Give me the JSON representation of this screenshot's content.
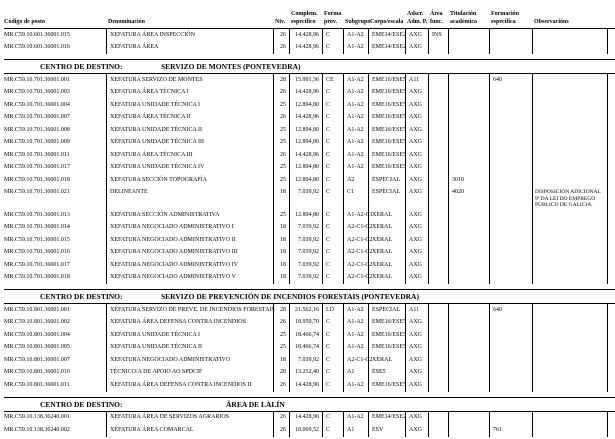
{
  "colors": {
    "text": "#000000",
    "line": "#000000",
    "background": "#ffffff"
  },
  "header": {
    "cols": [
      {
        "key": "codigo",
        "top": "",
        "bottom": "Código de posto"
      },
      {
        "key": "denominacion",
        "top": "",
        "bottom": "Denominación"
      },
      {
        "key": "niv",
        "top": "",
        "bottom": "Niv."
      },
      {
        "key": "complem",
        "top": "Complem.",
        "bottom": "específico"
      },
      {
        "key": "forma-prov",
        "top": "Forma",
        "bottom": "prov."
      },
      {
        "key": "subgrupo",
        "top": "",
        "bottom": "Subgrupo"
      },
      {
        "key": "corpo-escala",
        "top": "",
        "bottom": "Corpo/escala"
      },
      {
        "key": "adscr-adm-p",
        "top": "Adscr.",
        "bottom": "Adm. P."
      },
      {
        "key": "area-func",
        "top": "Área",
        "bottom": "func."
      },
      {
        "key": "titulacion",
        "top": "Titulación",
        "bottom": "académica"
      },
      {
        "key": "formacion",
        "top": "Formación",
        "bottom": "específica"
      },
      {
        "key": "observacions",
        "top": "",
        "bottom": "Observacións"
      }
    ]
  },
  "sections": [
    {
      "heading": null,
      "rows": [
        [
          "MR.C59.10.601.36001.015",
          "XEFATURA ÁREA INSPECCIÓN",
          "26",
          "14.428,96",
          "C",
          "A1-A2",
          "EME14/ESE2",
          "AXG",
          "INS",
          "",
          "",
          ""
        ],
        [
          "MR.C59.10.601.36001.016",
          "XEFATURA ÁREA",
          "26",
          "14.428,96",
          "C",
          "A1-A2",
          "EME14/ESE2",
          "AXG",
          "",
          "",
          "",
          ""
        ]
      ]
    },
    {
      "heading": {
        "label": "CENTRO DE DESTINO:",
        "name": "SERVIZO DE MONTES (PONTEVEDRA)"
      },
      "rows": [
        [
          "MR.C59.10.701.36001.001",
          "XEFATURA SERVIZO DE MONTES",
          "28",
          "15.991,36",
          "CE",
          "A1-A2",
          "EME16/ESE5",
          "A11",
          "",
          "",
          "640",
          ""
        ],
        [
          "MR.C59.10.701.36001.003",
          "XEFATURA ÁREA TÉCNICA I",
          "26",
          "14.428,96",
          "C",
          "A1-A2",
          "EME16/ESE5",
          "AXG",
          "",
          "",
          "",
          ""
        ],
        [
          "MR.C59.10.701.36001.004",
          "XEFATURA UNIDADE TÉCNICA I",
          "25",
          "12.894,80",
          "C",
          "A1-A2",
          "EME16/ESE5",
          "AXG",
          "",
          "",
          "",
          ""
        ],
        [
          "MR.C59.10.701.36001.007",
          "XEFATURA ÁREA TÉCNICA II",
          "26",
          "14.428,96",
          "C",
          "A1-A2",
          "EME16/ESE5",
          "AXG",
          "",
          "",
          "",
          ""
        ],
        [
          "MR.C59.10.701.36001.008",
          "XEFATURA UNIDADE TÉCNICA II",
          "25",
          "12.894,80",
          "C",
          "A1-A2",
          "EME16/ESE5",
          "AXG",
          "",
          "",
          "",
          ""
        ],
        [
          "MR.C59.10.701.36001.009",
          "XEFATURA UNIDADE TÉCNICA III",
          "25",
          "12.894,80",
          "C",
          "A1-A2",
          "EME16/ESE5",
          "AXG",
          "",
          "",
          "",
          ""
        ],
        [
          "MR.C59.10.701.36001.011",
          "XEFATURA ÁREA TÉCNICA III",
          "26",
          "14.428,96",
          "C",
          "A1-A2",
          "EME16/ESE5",
          "AXG",
          "",
          "",
          "",
          ""
        ],
        [
          "MR.C59.10.701.36001.017",
          "XEFATURA UNIDADE TÉCNICA IV",
          "25",
          "12.894,80",
          "C",
          "A1-A2",
          "EME16/ESE5",
          "AXG",
          "",
          "",
          "",
          ""
        ],
        [
          "MR.C59.10.701.36001.018",
          "XEFATURA SECCIÓN TOPOGRAFÍA",
          "25",
          "12.894,80",
          "C",
          "A2",
          "ESPECIAL",
          "AXG",
          "",
          "3010",
          "",
          ""
        ],
        [
          "MR.C59.10.701.36001.021",
          "DELINEANTE",
          "18",
          "7.039,92",
          "C",
          "C1",
          "ESPECIAL",
          "AXG",
          "",
          "4020",
          "",
          "DISPOSICIÓN ADICIONAL 9ª DA LEI DO EMPREGO PÚBLICO DE GALICIA."
        ],
        "spacer",
        [
          "MR.C59.10.701.36001.013",
          "XEFATURA SECCIÓN ADMINISTRATIVA",
          "25",
          "12.894,80",
          "C",
          "A1-A2-C1",
          "XERAL",
          "AXG",
          "",
          "",
          "",
          ""
        ],
        [
          "MR.C59.10.701.36001.014",
          "XEFATURA NEGOCIADO ADMINISTRATIVO I",
          "18",
          "7.039,92",
          "C",
          "A2-C1-C2",
          "XERAL",
          "AXG",
          "",
          "",
          "",
          ""
        ],
        [
          "MR.C59.10.701.36001.015",
          "XEFATURA NEGOCIADO ADMINISTRATIVO II",
          "18",
          "7.039,92",
          "C",
          "A2-C1-C2",
          "XERAL",
          "AXG",
          "",
          "",
          "",
          ""
        ],
        [
          "MR.C59.10.701.36001.016",
          "XEFATURA NEGOCIADO ADMINISTRATIVO III",
          "18",
          "7.039,92",
          "C",
          "A2-C1-C2",
          "XERAL",
          "AXG",
          "",
          "",
          "",
          ""
        ],
        [
          "MR.C59.10.701.36001.017",
          "XEFATURA NEGOCIADO ADMINISTRATIVO IV",
          "18",
          "7.039,92",
          "C",
          "A2-C1-C2",
          "XERAL",
          "AXG",
          "",
          "",
          "",
          ""
        ],
        [
          "MR.C59.10.701.36001.018",
          "XEFATURA NEGOCIADO ADMINISTRATIVO V",
          "18",
          "7.039,92",
          "C",
          "A2-C1-C2",
          "XERAL",
          "AXG",
          "",
          "",
          "",
          ""
        ]
      ]
    },
    {
      "heading": {
        "label": "CENTRO DE DESTINO:",
        "name": "SERVIZO DE PREVENCIÓN DE INCENDIOS FORESTAIS (PONTEVEDRA)"
      },
      "rows": [
        [
          "MR.C59.10.801.36001.001",
          "XEFATURA SERVIZO DE PREVE. DE INCENDIOS FORESTAIS",
          "28",
          "21.562,16",
          "LD",
          "A1-A2",
          "ESPECIAL",
          "A11",
          "",
          "",
          "640",
          ""
        ],
        [
          "MR.C59.10.801.36001.002",
          "XEFATURA ÁREA DEFENSA CONTRA INCENDIOS",
          "26",
          "18.959,70",
          "C",
          "A1-A2",
          "EME16/ESE5",
          "AXG",
          "",
          "",
          "",
          ""
        ],
        [
          "MR.C59.10.801.36001.004",
          "XEFATURA UNIDADE TÉCNICA I",
          "25",
          "18.466,74",
          "C",
          "A1-A2",
          "EME16/ESE5",
          "AXG",
          "",
          "",
          "",
          ""
        ],
        [
          "MR.C59.10.801.36001.005",
          "XEFATURA UNIDADE TÉCNICA II",
          "25",
          "18.466,74",
          "C",
          "A1-A2",
          "EME16/ESE5",
          "AXG",
          "",
          "",
          "",
          ""
        ],
        [
          "MR.C59.10.801.36001.007",
          "XEFATURA NEGOCIADO ADMINISTRATIVO",
          "18",
          "7.039,92",
          "C",
          "A2-C1-C2",
          "XERAL",
          "AXG",
          "",
          "",
          "",
          ""
        ],
        [
          "MR.C59.10.801.36001.010",
          "TÉCNICO/A DE APOIO AO SPDCIF",
          "20",
          "13.252,40",
          "C",
          "A1",
          "ESE5",
          "AXG",
          "",
          "",
          "",
          ""
        ],
        [
          "MR.C59.10.801.36001.011",
          "XEFATURA ÁREA DEFENSA CONTRA INCENDIOS II",
          "26",
          "14.428,96",
          "C",
          "A1-A2",
          "EME16/ESE5",
          "AXG",
          "",
          "",
          "",
          ""
        ]
      ]
    },
    {
      "heading": {
        "label": "CENTRO DE DESTINO:",
        "name": "ÁREA DE LALÍN"
      },
      "rows": [
        [
          "MR.C59.10.138.36240.001",
          "XEFATURA ÁREA DE SERVIZOS AGRARIOS",
          "26",
          "14.428,96",
          "C",
          "A1-A2",
          "EME14/ESE2",
          "AXG",
          "",
          "",
          "",
          ""
        ],
        [
          "MR.C59.10.138.36240.002",
          "XEFATURA ÁREA COMARCAL",
          "26",
          "18.069,52",
          "C",
          "A1",
          "ESV",
          "AXG",
          "",
          "",
          "761",
          ""
        ]
      ]
    }
  ]
}
